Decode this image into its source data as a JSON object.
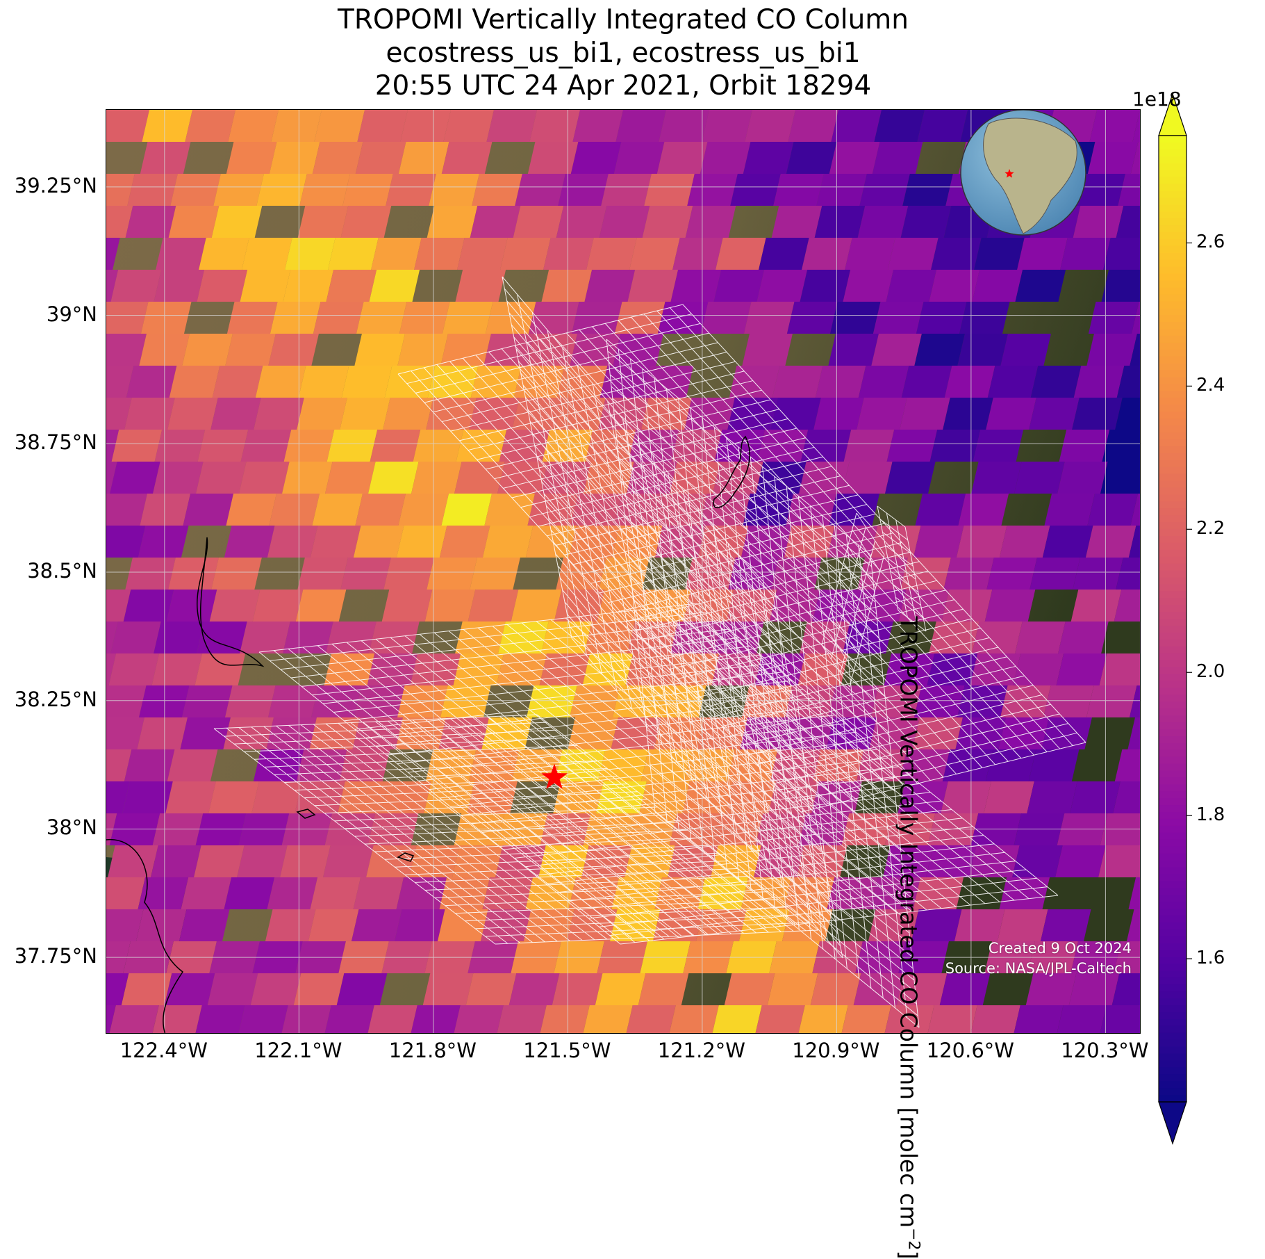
{
  "title": {
    "line1": "TROPOMI Vertically Integrated CO Column",
    "line2": "ecostress_us_bi1, ecostress_us_bi1",
    "line3": "20:55 UTC 24 Apr 2021, Orbit 18294"
  },
  "map": {
    "lon_range": [
      -122.53,
      -120.22
    ],
    "lat_range": [
      37.6,
      39.4
    ],
    "lat_ticks": [
      {
        "value": 39.25,
        "label": "39.25°N"
      },
      {
        "value": 39.0,
        "label": "39°N"
      },
      {
        "value": 38.75,
        "label": "38.75°N"
      },
      {
        "value": 38.5,
        "label": "38.5°N"
      },
      {
        "value": 38.25,
        "label": "38.25°N"
      },
      {
        "value": 38.0,
        "label": "38°N"
      },
      {
        "value": 37.75,
        "label": "37.75°N"
      }
    ],
    "lon_ticks": [
      {
        "value": -122.4,
        "label": "122.4°W"
      },
      {
        "value": -122.1,
        "label": "122.1°W"
      },
      {
        "value": -121.8,
        "label": "121.8°W"
      },
      {
        "value": -121.5,
        "label": "121.5°W"
      },
      {
        "value": -121.2,
        "label": "121.2°W"
      },
      {
        "value": -120.9,
        "label": "120.9°W"
      },
      {
        "value": -120.6,
        "label": "120.6°W"
      },
      {
        "value": -120.3,
        "label": "120.3°W"
      }
    ],
    "site_marker": {
      "lon": -121.53,
      "lat": 38.1,
      "icon": "star-icon",
      "color": "#ff0000"
    },
    "gridlines": true,
    "colormap": "plasma",
    "inset_globe": {
      "position": "top-right",
      "icon": "globe-icon"
    }
  },
  "colorbar": {
    "label": "TROPOMI Vertically Integrated CO Column [molec cm",
    "label_sup": "−2",
    "label_end": "]",
    "exponent": "1e18",
    "range": [
      1.4,
      2.75
    ],
    "ticks": [
      {
        "value": 1.6,
        "label": "1.6"
      },
      {
        "value": 1.8,
        "label": "1.8"
      },
      {
        "value": 2.0,
        "label": "2.0"
      },
      {
        "value": 2.2,
        "label": "2.2"
      },
      {
        "value": 2.4,
        "label": "2.4"
      },
      {
        "value": 2.6,
        "label": "2.6"
      }
    ],
    "extend": "both"
  },
  "credits": {
    "created": "Created 9 Oct 2024",
    "source": "Source: NASA/JPL-Caltech"
  }
}
